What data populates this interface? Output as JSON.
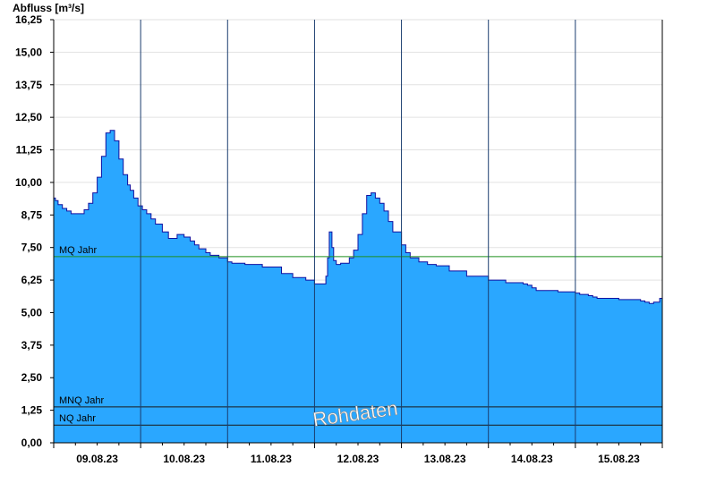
{
  "chart_data": {
    "type": "area",
    "title": "Abfluss [m³/s]",
    "ylim": [
      0,
      16.25
    ],
    "yticks": [
      "0,00",
      "1,25",
      "2,50",
      "3,75",
      "5,00",
      "6,25",
      "7,50",
      "8,75",
      "10,00",
      "11,25",
      "12,50",
      "13,75",
      "15,00",
      "16,25"
    ],
    "xticks": [
      "09.08.23",
      "10.08.23",
      "11.08.23",
      "12.08.23",
      "13.08.23",
      "14.08.23",
      "15.08.23"
    ],
    "grid": true,
    "reference_lines": [
      {
        "label": "MQ Jahr",
        "value": 7.15,
        "color": "#1f8f1f"
      },
      {
        "label": "MNQ Jahr",
        "value": 1.38,
        "color": "#1a1a1a"
      },
      {
        "label": "NQ Jahr",
        "value": 0.68,
        "color": "#1a1a1a"
      }
    ],
    "series": [
      {
        "fill": "#2aa7ff",
        "line": "#1010a0",
        "x_days": [
          0,
          0.02,
          0.05,
          0.1,
          0.15,
          0.2,
          0.25,
          0.3,
          0.35,
          0.4,
          0.45,
          0.5,
          0.55,
          0.6,
          0.65,
          0.7,
          0.75,
          0.8,
          0.85,
          0.88,
          0.92,
          0.97,
          1.02,
          1.07,
          1.12,
          1.17,
          1.25,
          1.32,
          1.42,
          1.5,
          1.57,
          1.62,
          1.67,
          1.75,
          1.8,
          1.9,
          2.0,
          2.05,
          2.2,
          2.4,
          2.62,
          2.75,
          2.9,
          3.0,
          3.1,
          3.13,
          3.15,
          3.17,
          3.2,
          3.22,
          3.25,
          3.3,
          3.4,
          3.45,
          3.5,
          3.55,
          3.6,
          3.65,
          3.7,
          3.75,
          3.8,
          3.85,
          3.9,
          4.0,
          4.05,
          4.1,
          4.2,
          4.3,
          4.4,
          4.55,
          4.75,
          5.0,
          5.2,
          5.4,
          5.45,
          5.5,
          5.55,
          5.8,
          6.0,
          6.05,
          6.15,
          6.2,
          6.25,
          6.5,
          6.7,
          6.75,
          6.8,
          6.85,
          6.9,
          6.97,
          7.0
        ],
        "values": [
          9.4,
          9.3,
          9.15,
          9.0,
          8.9,
          8.8,
          8.8,
          8.8,
          8.95,
          9.2,
          9.6,
          10.2,
          11.0,
          11.9,
          12.0,
          11.6,
          10.9,
          10.3,
          9.9,
          9.7,
          9.4,
          9.1,
          8.95,
          8.8,
          8.6,
          8.4,
          8.1,
          7.85,
          8.0,
          7.9,
          7.75,
          7.6,
          7.45,
          7.3,
          7.2,
          7.1,
          6.95,
          6.9,
          6.85,
          6.75,
          6.5,
          6.35,
          6.25,
          6.1,
          6.1,
          6.4,
          7.1,
          8.1,
          7.5,
          7.0,
          6.85,
          6.9,
          7.1,
          7.4,
          8.0,
          8.8,
          9.5,
          9.6,
          9.4,
          9.2,
          8.9,
          8.5,
          8.1,
          7.6,
          7.3,
          7.1,
          6.95,
          6.85,
          6.8,
          6.6,
          6.4,
          6.25,
          6.15,
          6.1,
          6.05,
          5.95,
          5.85,
          5.8,
          5.75,
          5.7,
          5.65,
          5.6,
          5.55,
          5.5,
          5.5,
          5.45,
          5.4,
          5.35,
          5.4,
          5.55,
          5.55
        ]
      }
    ],
    "watermark": "Rohdaten"
  }
}
